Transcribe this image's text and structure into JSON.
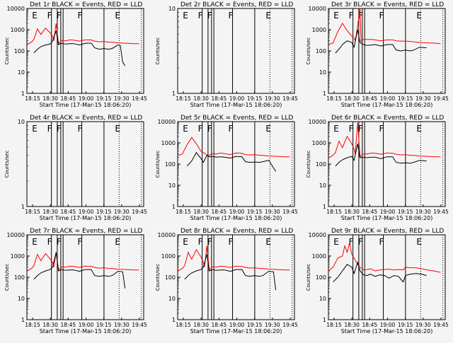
{
  "chart_data": [
    {
      "type": "line",
      "title": "Det 1r BLACK = Events, RED = LLD",
      "xlabel": "Start Time (17-Mar-15 18:06:20)",
      "ylabel": "Counts/sec",
      "yscale": "log",
      "ylim": [
        1,
        10000
      ],
      "yticks": [
        "1",
        "10",
        "100",
        "1000",
        "10000"
      ],
      "xticks": [
        "18:15",
        "18:30",
        "18:45",
        "19:00",
        "19:15",
        "19:30",
        "19:45"
      ],
      "flags": [
        "E",
        "F",
        "F",
        "F",
        "E"
      ],
      "series": [
        {
          "name": "LLD",
          "color": "#ff0000",
          "x": [
            0.0,
            0.04,
            0.06,
            0.09,
            0.12,
            0.16,
            0.2,
            0.22,
            0.23,
            0.25,
            0.27,
            0.28,
            0.3,
            0.33,
            0.37,
            0.4,
            0.45,
            0.5,
            0.55,
            0.58,
            0.62,
            0.66,
            0.7,
            0.73,
            0.78,
            0.85,
            0.92,
            0.96
          ],
          "y": [
            200,
            260,
            350,
            1100,
            600,
            1200,
            700,
            500,
            300,
            2000,
            220,
            250,
            310,
            300,
            330,
            320,
            290,
            330,
            330,
            290,
            270,
            280,
            260,
            260,
            240,
            230,
            220,
            220
          ]
        },
        {
          "name": "Events",
          "color": "#000000",
          "x": [
            0.06,
            0.09,
            0.12,
            0.16,
            0.2,
            0.22,
            0.25,
            0.27,
            0.3,
            0.33,
            0.37,
            0.4,
            0.45,
            0.5,
            0.55,
            0.58,
            0.62,
            0.66,
            0.7,
            0.73,
            0.78,
            0.8,
            0.82,
            0.84
          ],
          "y": [
            80,
            120,
            160,
            190,
            210,
            300,
            900,
            200,
            230,
            210,
            220,
            220,
            190,
            230,
            230,
            140,
            120,
            130,
            120,
            130,
            190,
            180,
            30,
            20
          ]
        }
      ]
    },
    {
      "type": "line",
      "title": "Det 2r BLACK = Events, RED = LLD",
      "xlabel": "Start Time (17-Mar-15 18:06:20)",
      "ylabel": "Counts/sec",
      "yscale": "log",
      "ylim": [
        1,
        10
      ],
      "yticks": [
        "1",
        "10"
      ],
      "xticks": [
        "18:15",
        "18:30",
        "18:45",
        "19:00",
        "19:15",
        "19:30",
        "19:45"
      ],
      "flags": [
        "E",
        "F",
        "F",
        "F",
        "E"
      ],
      "series": []
    },
    {
      "type": "line",
      "title": "Det 3r BLACK = Events, RED = LLD",
      "xlabel": "Start Time (17-Mar-15 18:06:20)",
      "ylabel": "Counts/sec",
      "yscale": "log",
      "ylim": [
        1,
        10000
      ],
      "yticks": [
        "1",
        "10",
        "100",
        "1000",
        "10000"
      ],
      "xticks": [
        "18:15",
        "18:30",
        "18:45",
        "19:00",
        "19:15",
        "19:30",
        "19:45"
      ],
      "flags": [
        "E",
        "F",
        "F",
        "F",
        "E"
      ],
      "series": [
        {
          "name": "LLD",
          "color": "#ff0000",
          "x": [
            0.0,
            0.04,
            0.08,
            0.12,
            0.16,
            0.2,
            0.22,
            0.23,
            0.25,
            0.27,
            0.28,
            0.3,
            0.33,
            0.37,
            0.4,
            0.45,
            0.5,
            0.55,
            0.58,
            0.62,
            0.66,
            0.7,
            0.73,
            0.78,
            0.85,
            0.92,
            0.96
          ],
          "y": [
            200,
            240,
            800,
            2000,
            900,
            500,
            400,
            300,
            1500,
            10000,
            280,
            350,
            350,
            350,
            330,
            300,
            330,
            330,
            300,
            290,
            290,
            280,
            270,
            250,
            240,
            230,
            220
          ]
        },
        {
          "name": "Events",
          "color": "#000000",
          "x": [
            0.06,
            0.09,
            0.12,
            0.16,
            0.2,
            0.22,
            0.25,
            0.27,
            0.3,
            0.33,
            0.37,
            0.4,
            0.45,
            0.5,
            0.55,
            0.58,
            0.62,
            0.66,
            0.7,
            0.73,
            0.78,
            0.84
          ],
          "y": [
            80,
            120,
            200,
            300,
            250,
            150,
            1000,
            250,
            200,
            180,
            190,
            200,
            170,
            200,
            200,
            110,
            100,
            110,
            100,
            110,
            150,
            140
          ]
        }
      ]
    },
    {
      "type": "line",
      "title": "Det 4r BLACK = Events, RED = LLD",
      "xlabel": "Start Time (17-Mar-15 18:06:20)",
      "ylabel": "Counts/sec",
      "yscale": "log",
      "ylim": [
        1,
        10
      ],
      "yticks": [
        "1",
        "10"
      ],
      "xticks": [
        "18:15",
        "18:30",
        "18:45",
        "19:00",
        "19:15",
        "19:30",
        "19:45"
      ],
      "flags": [
        "E",
        "F",
        "F",
        "F",
        "E"
      ],
      "series": []
    },
    {
      "type": "line",
      "title": "Det 5r BLACK = Events, RED = LLD",
      "xlabel": "Start Time (17-Mar-15 18:06:20)",
      "ylabel": "Counts/sec",
      "yscale": "log",
      "ylim": [
        1,
        10000
      ],
      "yticks": [
        "1",
        "10",
        "100",
        "1000",
        "10000"
      ],
      "xticks": [
        "18:15",
        "18:30",
        "18:45",
        "19:00",
        "19:15",
        "19:30",
        "19:45"
      ],
      "flags": [
        "E",
        "F",
        "F",
        "F",
        "E"
      ],
      "series": [
        {
          "name": "LLD",
          "color": "#ff0000",
          "x": [
            0.0,
            0.04,
            0.08,
            0.12,
            0.16,
            0.2,
            0.22,
            0.24,
            0.26,
            0.28,
            0.3,
            0.33,
            0.37,
            0.4,
            0.45,
            0.5,
            0.55,
            0.58,
            0.62,
            0.66,
            0.7,
            0.73,
            0.78,
            0.85,
            0.92,
            0.96
          ],
          "y": [
            250,
            300,
            800,
            1800,
            900,
            400,
            350,
            300,
            250,
            280,
            310,
            300,
            330,
            310,
            280,
            330,
            320,
            280,
            270,
            280,
            260,
            260,
            240,
            230,
            220,
            220
          ]
        },
        {
          "name": "Events",
          "color": "#000000",
          "x": [
            0.08,
            0.12,
            0.16,
            0.2,
            0.22,
            0.25,
            0.27,
            0.3,
            0.33,
            0.37,
            0.4,
            0.45,
            0.5,
            0.55,
            0.58,
            0.62,
            0.66,
            0.7,
            0.73,
            0.78,
            0.84
          ],
          "y": [
            80,
            140,
            350,
            180,
            120,
            260,
            220,
            230,
            210,
            220,
            210,
            190,
            230,
            220,
            130,
            120,
            125,
            120,
            130,
            150,
            45
          ]
        }
      ]
    },
    {
      "type": "line",
      "title": "Det 6r BLACK = Events, RED = LLD",
      "xlabel": "Start Time (17-Mar-15 18:06:20)",
      "ylabel": "Counts/sec",
      "yscale": "log",
      "ylim": [
        1,
        10000
      ],
      "yticks": [
        "1",
        "10",
        "100",
        "1000",
        "10000"
      ],
      "xticks": [
        "18:15",
        "18:30",
        "18:45",
        "19:00",
        "19:15",
        "19:30",
        "19:45"
      ],
      "flags": [
        "E",
        "F",
        "F",
        "F",
        "E"
      ],
      "series": [
        {
          "name": "LLD",
          "color": "#ff0000",
          "x": [
            0.0,
            0.04,
            0.06,
            0.09,
            0.12,
            0.16,
            0.2,
            0.22,
            0.23,
            0.25,
            0.27,
            0.28,
            0.3,
            0.33,
            0.37,
            0.4,
            0.45,
            0.5,
            0.55,
            0.58,
            0.62,
            0.66,
            0.7,
            0.73,
            0.78,
            0.85,
            0.92,
            0.96
          ],
          "y": [
            200,
            260,
            350,
            1200,
            600,
            2000,
            900,
            500,
            300,
            9000,
            220,
            250,
            300,
            300,
            330,
            320,
            290,
            330,
            320,
            290,
            270,
            280,
            260,
            260,
            240,
            230,
            220,
            220
          ]
        },
        {
          "name": "Events",
          "color": "#000000",
          "x": [
            0.06,
            0.09,
            0.12,
            0.16,
            0.2,
            0.22,
            0.25,
            0.27,
            0.3,
            0.33,
            0.37,
            0.4,
            0.45,
            0.5,
            0.55,
            0.58,
            0.62,
            0.66,
            0.7,
            0.73,
            0.78,
            0.84
          ],
          "y": [
            80,
            120,
            160,
            200,
            230,
            150,
            900,
            200,
            210,
            200,
            210,
            210,
            180,
            220,
            220,
            120,
            110,
            115,
            110,
            120,
            150,
            140
          ]
        }
      ]
    },
    {
      "type": "line",
      "title": "Det 7r BLACK = Events, RED = LLD",
      "xlabel": "Start Time (17-Mar-15 18:06:20)",
      "ylabel": "Counts/sec",
      "yscale": "log",
      "ylim": [
        1,
        10000
      ],
      "yticks": [
        "1",
        "10",
        "100",
        "1000",
        "10000"
      ],
      "xticks": [
        "18:15",
        "18:30",
        "18:45",
        "19:00",
        "19:15",
        "19:30",
        "19:45"
      ],
      "flags": [
        "E",
        "F",
        "F",
        "F",
        "E"
      ],
      "series": [
        {
          "name": "LLD",
          "color": "#ff0000",
          "x": [
            0.0,
            0.04,
            0.06,
            0.09,
            0.12,
            0.16,
            0.2,
            0.22,
            0.23,
            0.25,
            0.27,
            0.28,
            0.3,
            0.33,
            0.37,
            0.4,
            0.45,
            0.5,
            0.55,
            0.58,
            0.62,
            0.66,
            0.7,
            0.73,
            0.78,
            0.85,
            0.92,
            0.96
          ],
          "y": [
            200,
            260,
            350,
            1200,
            600,
            1300,
            700,
            500,
            300,
            1500,
            220,
            250,
            310,
            300,
            330,
            320,
            290,
            330,
            320,
            290,
            270,
            280,
            260,
            260,
            240,
            230,
            220,
            220
          ]
        },
        {
          "name": "Events",
          "color": "#000000",
          "x": [
            0.06,
            0.09,
            0.12,
            0.16,
            0.2,
            0.22,
            0.25,
            0.27,
            0.3,
            0.33,
            0.37,
            0.4,
            0.45,
            0.5,
            0.55,
            0.58,
            0.62,
            0.66,
            0.7,
            0.73,
            0.78,
            0.82,
            0.84
          ],
          "y": [
            80,
            120,
            160,
            200,
            230,
            300,
            1500,
            200,
            230,
            210,
            220,
            220,
            190,
            230,
            230,
            120,
            110,
            120,
            110,
            120,
            190,
            180,
            30
          ]
        }
      ]
    },
    {
      "type": "line",
      "title": "Det 8r BLACK = Events, RED = LLD",
      "xlabel": "Start Time (17-Mar-15 18:06:20)",
      "ylabel": "Counts/sec",
      "yscale": "log",
      "ylim": [
        1,
        10000
      ],
      "yticks": [
        "1",
        "10",
        "100",
        "1000",
        "10000"
      ],
      "xticks": [
        "18:15",
        "18:30",
        "18:45",
        "19:00",
        "19:15",
        "19:30",
        "19:45"
      ],
      "flags": [
        "E",
        "F",
        "F",
        "F",
        "E"
      ],
      "series": [
        {
          "name": "LLD",
          "color": "#ff0000",
          "x": [
            0.0,
            0.04,
            0.06,
            0.09,
            0.12,
            0.16,
            0.2,
            0.22,
            0.23,
            0.25,
            0.27,
            0.28,
            0.3,
            0.33,
            0.37,
            0.4,
            0.45,
            0.5,
            0.55,
            0.58,
            0.62,
            0.66,
            0.7,
            0.73,
            0.78,
            0.85,
            0.92,
            0.96
          ],
          "y": [
            200,
            260,
            350,
            1500,
            700,
            2000,
            900,
            500,
            300,
            3000,
            220,
            250,
            310,
            300,
            330,
            320,
            290,
            330,
            320,
            290,
            270,
            280,
            260,
            260,
            240,
            230,
            220,
            220
          ]
        },
        {
          "name": "Events",
          "color": "#000000",
          "x": [
            0.06,
            0.09,
            0.12,
            0.16,
            0.2,
            0.22,
            0.25,
            0.27,
            0.3,
            0.33,
            0.37,
            0.4,
            0.45,
            0.5,
            0.55,
            0.58,
            0.62,
            0.66,
            0.7,
            0.73,
            0.78,
            0.82,
            0.84
          ],
          "y": [
            80,
            120,
            160,
            200,
            230,
            300,
            1200,
            200,
            230,
            210,
            220,
            220,
            190,
            230,
            230,
            120,
            110,
            120,
            110,
            120,
            190,
            180,
            25
          ]
        }
      ]
    },
    {
      "type": "line",
      "title": "Det 9r BLACK = Events, RED = LLD",
      "xlabel": "Start Time (17-Mar-15 18:06:20)",
      "ylabel": "Counts/sec",
      "yscale": "log",
      "ylim": [
        1,
        10000
      ],
      "yticks": [
        "1",
        "10",
        "100",
        "1000",
        "10000"
      ],
      "xticks": [
        "18:15",
        "18:30",
        "18:45",
        "19:00",
        "19:15",
        "19:30",
        "19:45"
      ],
      "flags": [
        "E",
        "F",
        "F",
        "F",
        "E"
      ],
      "series": [
        {
          "name": "LLD",
          "color": "#ff0000",
          "x": [
            0.0,
            0.04,
            0.08,
            0.12,
            0.14,
            0.16,
            0.18,
            0.2,
            0.22,
            0.25,
            0.27,
            0.3,
            0.33,
            0.36,
            0.4,
            0.44,
            0.48,
            0.52,
            0.56,
            0.6,
            0.64,
            0.66,
            0.7,
            0.75,
            0.8,
            0.85,
            0.9,
            0.96
          ],
          "y": [
            200,
            300,
            800,
            1000,
            3000,
            1500,
            4000,
            1200,
            800,
            400,
            300,
            220,
            230,
            250,
            200,
            220,
            230,
            240,
            220,
            230,
            220,
            300,
            280,
            280,
            250,
            220,
            200,
            170
          ]
        },
        {
          "name": "Events",
          "color": "#000000",
          "x": [
            0.04,
            0.08,
            0.12,
            0.16,
            0.2,
            0.22,
            0.25,
            0.27,
            0.3,
            0.33,
            0.36,
            0.4,
            0.44,
            0.48,
            0.52,
            0.56,
            0.6,
            0.64,
            0.66,
            0.7,
            0.75,
            0.8,
            0.84
          ],
          "y": [
            60,
            100,
            200,
            400,
            300,
            150,
            500,
            200,
            130,
            120,
            140,
            110,
            130,
            120,
            90,
            120,
            110,
            60,
            120,
            140,
            150,
            140,
            120
          ]
        }
      ]
    }
  ]
}
